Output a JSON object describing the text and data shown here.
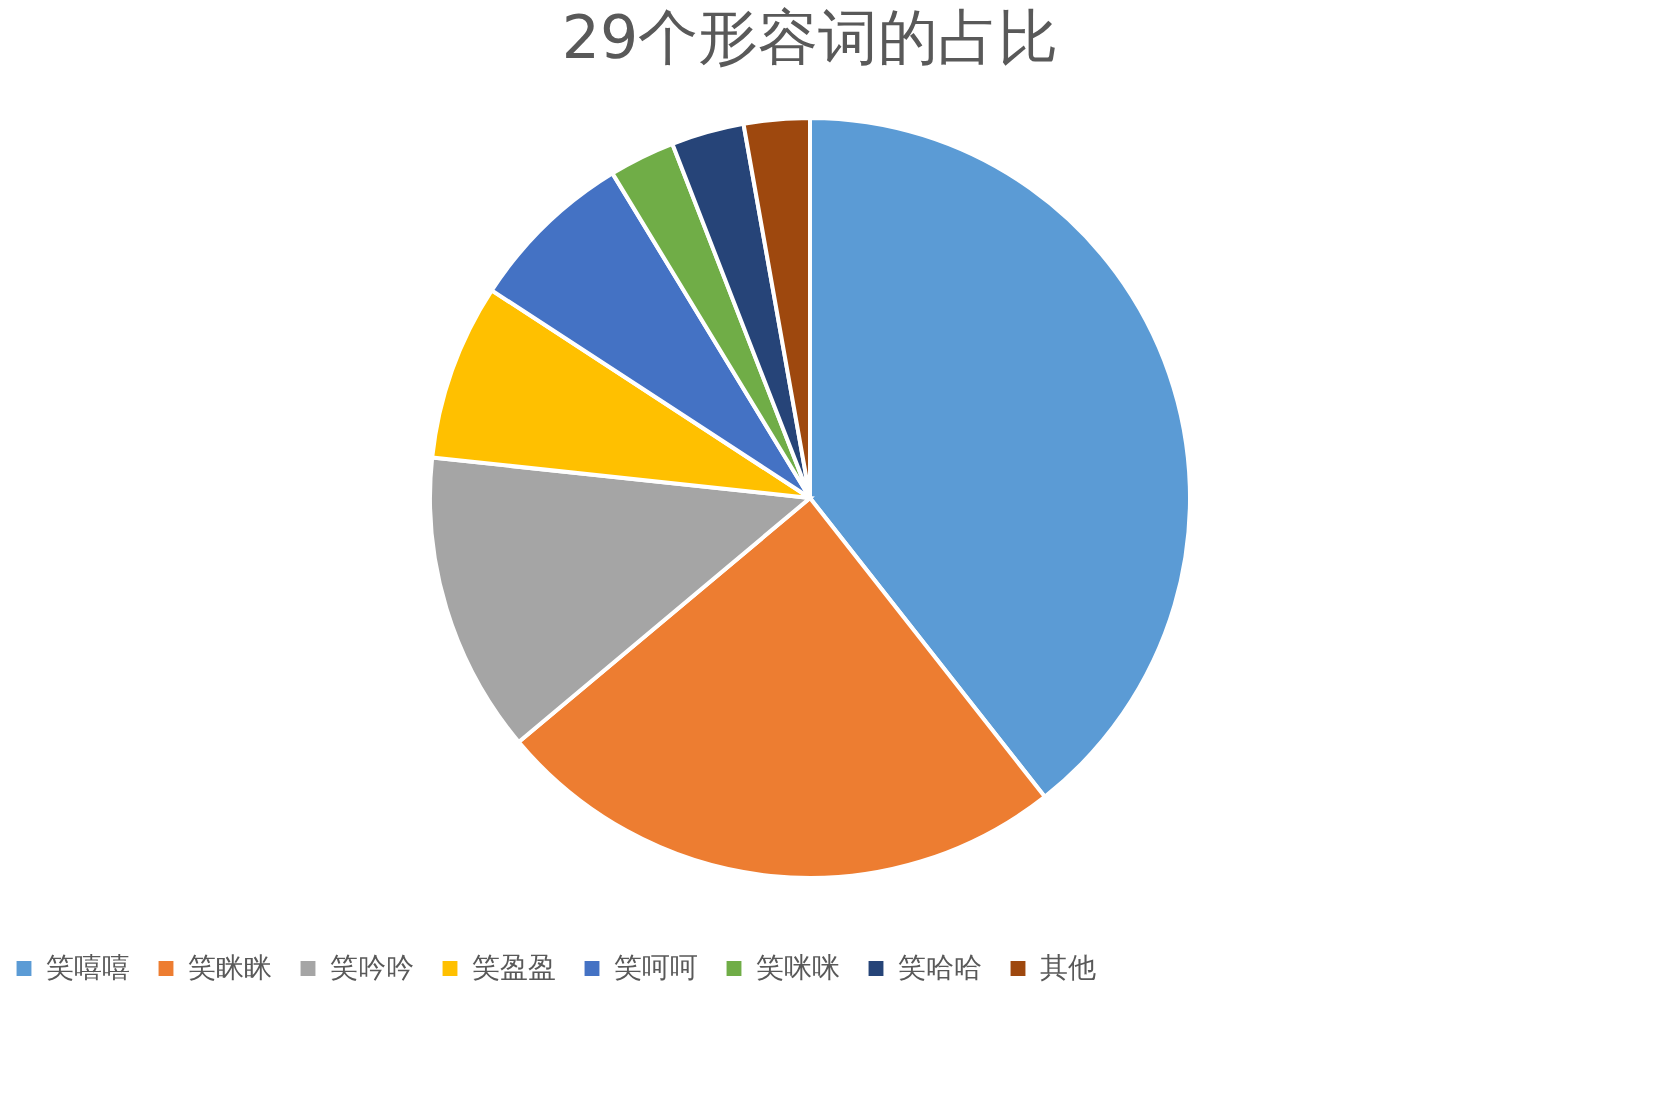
{
  "chart_data": {
    "type": "pie",
    "title": "29个形容词的占比",
    "categories": [
      "笑嘻嘻",
      "笑眯眯",
      "笑吟吟",
      "笑盈盈",
      "笑呵呵",
      "笑咪咪",
      "笑哈哈",
      "其他"
    ],
    "values": [
      39.4,
      24.5,
      12.8,
      7.5,
      7.1,
      2.8,
      3.1,
      2.8
    ],
    "colors": [
      "#5b9bd5",
      "#ed7d31",
      "#a5a5a5",
      "#ffc000",
      "#4472c4",
      "#70ad47",
      "#264478",
      "#9e480e"
    ],
    "legend": "bottom"
  }
}
